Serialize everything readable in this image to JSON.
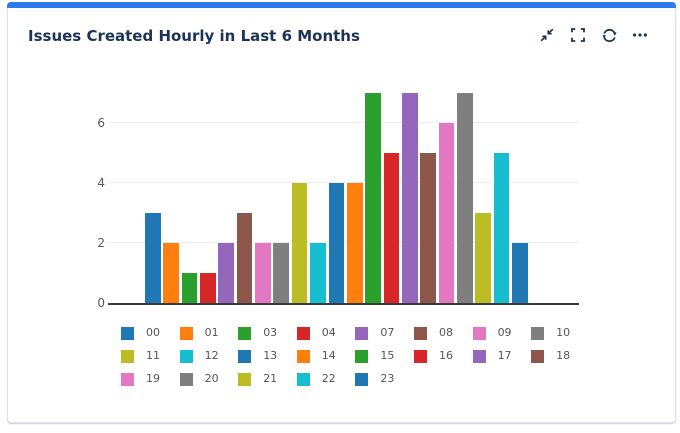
{
  "card": {
    "title": "Issues Created Hourly in Last 6 Months",
    "toolbar_icons": [
      "collapse-icon",
      "fullscreen-icon",
      "refresh-icon",
      "ellipsis-icon"
    ]
  },
  "colors": {
    "accent": "#2b7de9",
    "title": "#1c3358",
    "icon": "#1c3358",
    "card_border": "#dfe3e8",
    "axis_text": "#595959",
    "legend_text": "#555555",
    "gridline": "#ededed",
    "baseline": "#3b3b3b"
  },
  "chart_data": {
    "type": "bar",
    "title": "Issues Created Hourly in Last 6 Months",
    "categories": [
      "00",
      "01",
      "03",
      "04",
      "07",
      "08",
      "09",
      "10",
      "11",
      "12",
      "13",
      "14",
      "15",
      "16",
      "17",
      "18",
      "19",
      "20",
      "21",
      "22",
      "23"
    ],
    "values": [
      3,
      2,
      1,
      1,
      2,
      3,
      2,
      2,
      4,
      2,
      4,
      4,
      7,
      5,
      7,
      5,
      6,
      7,
      3,
      5,
      2
    ],
    "palette": [
      "#1f77b4",
      "#ff7f0e",
      "#2ca02c",
      "#d62728",
      "#9467bd",
      "#8c564b",
      "#e377c2",
      "#7f7f7f",
      "#bcbd22",
      "#17becf"
    ],
    "yticks": [
      0,
      2,
      4,
      6
    ],
    "ylim": [
      0,
      7.5
    ],
    "xlabel": "",
    "ylabel": "",
    "grid": true,
    "legend_position": "bottom",
    "legend_rows": [
      8,
      8,
      5
    ]
  }
}
